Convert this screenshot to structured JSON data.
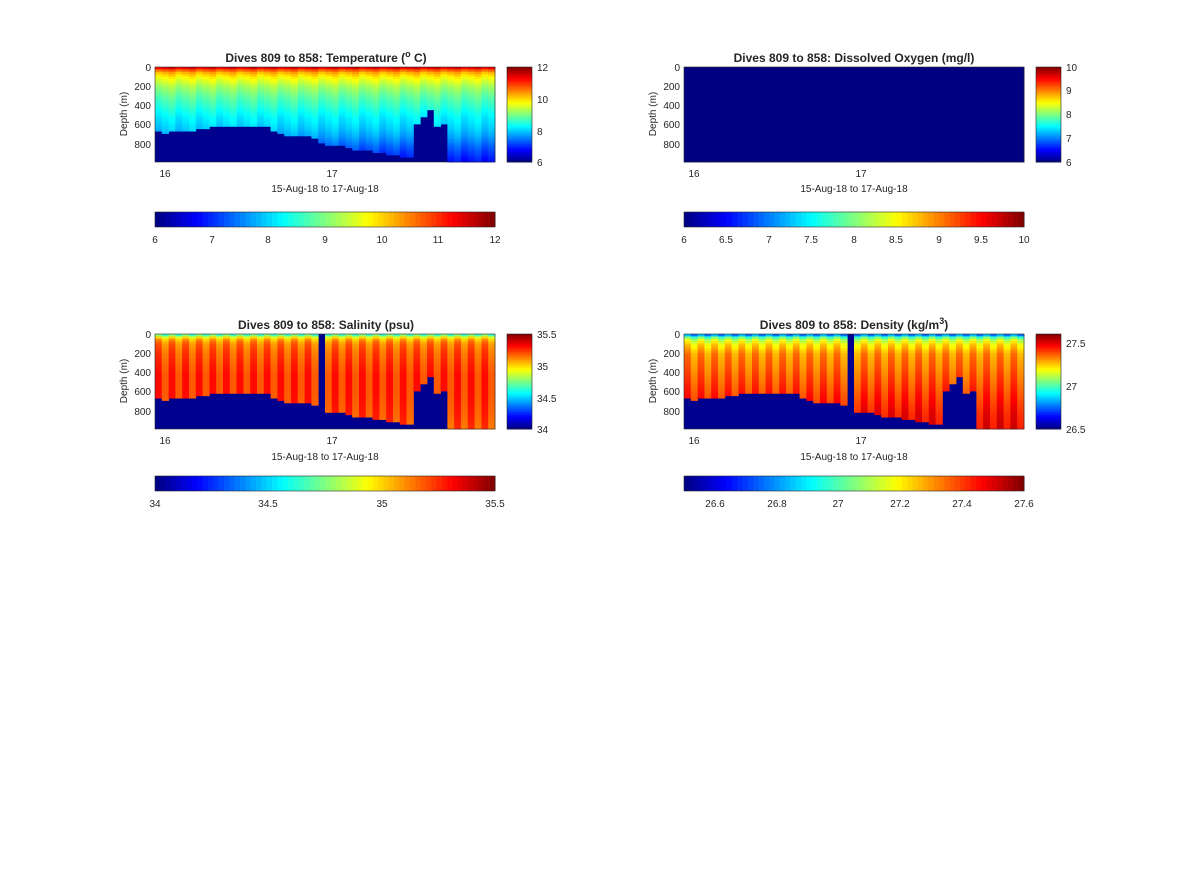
{
  "figure": {
    "background": "#ffffff"
  },
  "panels": [
    {
      "id": "temperature",
      "title_main": "Dives 809 to 858: Temperature (",
      "title_sup": "o",
      "title_tail": " C)",
      "ylabel": "Depth (m)",
      "xlabel": "15-Aug-18 to 17-Aug-18",
      "xticks": [
        "16",
        "17"
      ],
      "yticks": [
        "0",
        "200",
        "400",
        "600",
        "800"
      ],
      "cbar_side_ticks": [
        "12",
        "10",
        "8",
        "6"
      ],
      "cbar_bottom_ticks": [
        "6",
        "7",
        "8",
        "9",
        "10",
        "11",
        "12"
      ]
    },
    {
      "id": "oxygen",
      "title_main": "Dives 809 to 858: Dissolved Oxygen (mg/l)",
      "title_sup": "",
      "title_tail": "",
      "ylabel": "Depth (m)",
      "xlabel": "15-Aug-18 to 17-Aug-18",
      "xticks": [
        "16",
        "17"
      ],
      "yticks": [
        "0",
        "200",
        "400",
        "600",
        "800"
      ],
      "cbar_side_ticks": [
        "10",
        "9",
        "8",
        "7",
        "6"
      ],
      "cbar_bottom_ticks": [
        "6",
        "6.5",
        "7",
        "7.5",
        "8",
        "8.5",
        "9",
        "9.5",
        "10"
      ]
    },
    {
      "id": "salinity",
      "title_main": "Dives 809 to 858: Salinity (psu)",
      "title_sup": "",
      "title_tail": "",
      "ylabel": "Depth (m)",
      "xlabel": "15-Aug-18 to 17-Aug-18",
      "xticks": [
        "16",
        "17"
      ],
      "yticks": [
        "0",
        "200",
        "400",
        "600",
        "800"
      ],
      "cbar_side_ticks": [
        "35.5",
        "35",
        "34.5",
        "34"
      ],
      "cbar_bottom_ticks": [
        "34",
        "34.5",
        "35",
        "35.5"
      ]
    },
    {
      "id": "density",
      "title_main": "Dives 809 to 858: Density (kg/m",
      "title_sup": "3",
      "title_tail": ")",
      "ylabel": "Depth (m)",
      "xlabel": "15-Aug-18 to 17-Aug-18",
      "xticks": [
        "16",
        "17"
      ],
      "yticks": [
        "0",
        "200",
        "400",
        "600",
        "800"
      ],
      "cbar_side_ticks": [
        "27.5",
        "27",
        "26.5"
      ],
      "cbar_bottom_ticks": [
        "26.6",
        "26.8",
        "27",
        "27.2",
        "27.4",
        "27.6"
      ]
    }
  ],
  "chart_data": [
    {
      "type": "heatmap",
      "title": "Dives 809 to 858: Temperature (o C)",
      "xlabel": "15-Aug-18 to 17-Aug-18",
      "ylabel": "Depth (m)",
      "colormap": "jet",
      "clim": [
        6,
        12
      ],
      "ylim": [
        0,
        950
      ],
      "y_reversed": true,
      "dives": [
        809,
        858
      ],
      "profile": {
        "depth": [
          0,
          20,
          50,
          100,
          200,
          300,
          400,
          500,
          600,
          700,
          800,
          950
        ],
        "value": [
          11.8,
          11.0,
          10.3,
          9.8,
          9.2,
          8.8,
          8.5,
          8.2,
          8.0,
          7.7,
          7.3,
          6.8
        ]
      },
      "max_depth_per_dive": [
        650,
        660,
        650,
        645,
        640,
        630,
        620,
        610,
        600,
        600,
        600,
        600,
        600,
        600,
        600,
        600,
        600,
        640,
        660,
        680,
        690,
        690,
        700,
        720,
        770,
        790,
        790,
        790,
        810,
        820,
        830,
        840,
        850,
        860,
        870,
        880,
        900,
        910,
        560,
        500,
        430,
        600,
        560,
        950,
        950,
        950,
        950,
        950,
        950,
        950
      ]
    },
    {
      "type": "heatmap",
      "title": "Dives 809 to 858: Dissolved Oxygen (mg/l)",
      "xlabel": "15-Aug-18 to 17-Aug-18",
      "ylabel": "Depth (m)",
      "colormap": "jet",
      "clim": [
        6,
        10
      ],
      "ylim": [
        0,
        950
      ],
      "y_reversed": true,
      "dives": [
        809,
        858
      ],
      "profile": {
        "depth": [
          0,
          950
        ],
        "value": [
          6,
          6
        ]
      }
    },
    {
      "type": "heatmap",
      "title": "Dives 809 to 858: Salinity (psu)",
      "xlabel": "15-Aug-18 to 17-Aug-18",
      "ylabel": "Depth (m)",
      "colormap": "jet",
      "clim": [
        34,
        35.5
      ],
      "ylim": [
        0,
        950
      ],
      "y_reversed": true,
      "dives": [
        809,
        858
      ],
      "profile": {
        "depth": [
          0,
          20,
          50,
          100,
          200,
          400,
          600,
          800,
          950
        ],
        "value": [
          34.6,
          34.9,
          35.1,
          35.2,
          35.25,
          35.3,
          35.3,
          35.28,
          35.25
        ]
      },
      "max_depth_per_dive": [
        650,
        660,
        650,
        645,
        640,
        630,
        620,
        610,
        600,
        600,
        600,
        600,
        600,
        600,
        600,
        600,
        600,
        640,
        660,
        680,
        690,
        690,
        700,
        720,
        0,
        790,
        790,
        790,
        810,
        820,
        830,
        840,
        850,
        860,
        870,
        880,
        900,
        910,
        560,
        500,
        430,
        600,
        560,
        950,
        950,
        950,
        950,
        950,
        950,
        950
      ]
    },
    {
      "type": "heatmap",
      "title": "Dives 809 to 858: Density (kg/m3)",
      "xlabel": "15-Aug-18 to 17-Aug-18",
      "ylabel": "Depth (m)",
      "colormap": "jet",
      "clim": [
        26.5,
        27.6
      ],
      "ylim": [
        0,
        950
      ],
      "y_reversed": true,
      "dives": [
        809,
        858
      ],
      "profile": {
        "depth": [
          0,
          20,
          50,
          100,
          200,
          400,
          600,
          800,
          950
        ],
        "value": [
          26.7,
          26.95,
          27.15,
          27.25,
          27.35,
          27.4,
          27.45,
          27.5,
          27.52
        ]
      },
      "max_depth_per_dive": [
        650,
        660,
        650,
        645,
        640,
        630,
        620,
        610,
        600,
        600,
        600,
        600,
        600,
        600,
        600,
        600,
        600,
        640,
        660,
        680,
        690,
        690,
        700,
        720,
        0,
        790,
        790,
        790,
        810,
        820,
        830,
        840,
        850,
        860,
        870,
        880,
        900,
        910,
        560,
        500,
        430,
        600,
        560,
        950,
        950,
        950,
        950,
        950,
        950,
        950
      ]
    }
  ]
}
